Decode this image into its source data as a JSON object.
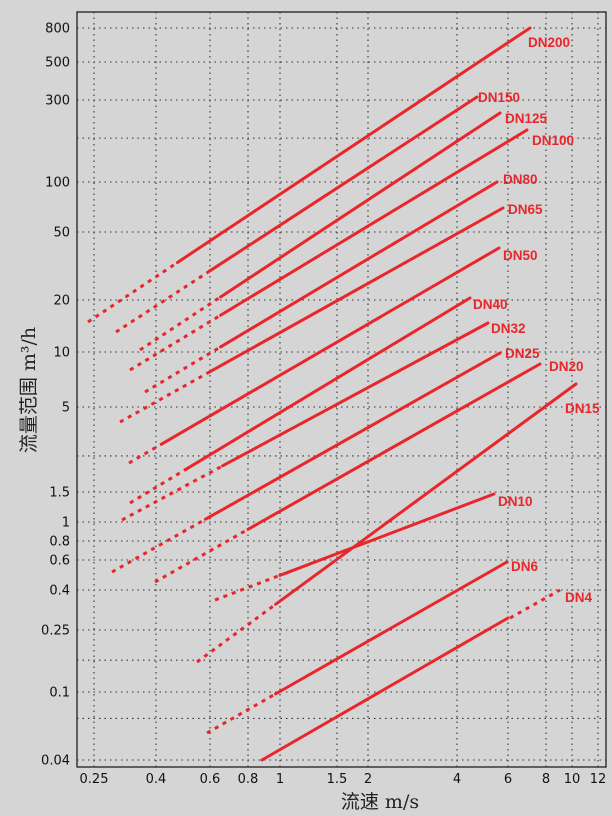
{
  "chart_data": {
    "type": "line",
    "xlabel": "流速 m/s",
    "ylabel": "流量范围 m³/h",
    "xscale": "log",
    "yscale": "log",
    "xlim": [
      0.23,
      12.5
    ],
    "ylim": [
      0.04,
      1000
    ],
    "grid": true,
    "x_ticks": [
      {
        "v": 0.25,
        "label": "0.25"
      },
      {
        "v": 0.4,
        "label": "0.4"
      },
      {
        "v": 0.6,
        "label": "0.6"
      },
      {
        "v": 0.8,
        "label": "0.8"
      },
      {
        "v": 1,
        "label": "1"
      },
      {
        "v": 1.5,
        "label": "1.5"
      },
      {
        "v": 2,
        "label": "2"
      },
      {
        "v": 4,
        "label": "4"
      },
      {
        "v": 6,
        "label": "6"
      },
      {
        "v": 8,
        "label": "8"
      },
      {
        "v": 10,
        "label": "10"
      },
      {
        "v": 12,
        "label": "12"
      }
    ],
    "y_ticks": [
      {
        "v": 0.04,
        "label": "0.04"
      },
      {
        "v": 0.1,
        "label": "0.1"
      },
      {
        "v": 0.25,
        "label": "0.25"
      },
      {
        "v": 0.4,
        "label": "0.4"
      },
      {
        "v": 0.6,
        "label": "0.6"
      },
      {
        "v": 0.8,
        "label": "0.8"
      },
      {
        "v": 1,
        "label": "1"
      },
      {
        "v": 1.5,
        "label": "1.5"
      },
      {
        "v": 5,
        "label": "5"
      },
      {
        "v": 10,
        "label": "10"
      },
      {
        "v": 20,
        "label": "20"
      },
      {
        "v": 50,
        "label": "50"
      },
      {
        "v": 100,
        "label": "100"
      },
      {
        "v": 300,
        "label": "300"
      },
      {
        "v": 500,
        "label": "500"
      },
      {
        "v": 800,
        "label": "800"
      }
    ],
    "x_grid": [
      0.25,
      0.4,
      0.6,
      0.8,
      1,
      1.5,
      2,
      4,
      6,
      8,
      10,
      12
    ],
    "y_grid": [
      0.04,
      0.07,
      0.1,
      0.16,
      0.25,
      0.4,
      0.6,
      0.8,
      1,
      1.5,
      2.5,
      5,
      10,
      20,
      50,
      100,
      180,
      300,
      500,
      800
    ],
    "series": [
      {
        "name": "DN200",
        "dashed": [
          0.24,
          0.47
        ],
        "solid": [
          0.48,
          7
        ]
      },
      {
        "name": "DN150",
        "dashed": [
          0.28,
          0.6
        ],
        "solid": [
          0.6,
          5.6
        ]
      },
      {
        "name": "DN125",
        "dashed": [
          0.35,
          0.65
        ],
        "solid": [
          0.66,
          5.8
        ]
      },
      {
        "name": "DN100",
        "dashed": [
          0.32,
          0.65
        ],
        "solid": [
          0.66,
          6.2
        ]
      },
      {
        "name": "DN80",
        "dashed": [
          0.35,
          0.65
        ],
        "solid": [
          0.66,
          5.5
        ]
      },
      {
        "name": "DN65",
        "dashed": [
          0.3,
          0.6
        ],
        "solid": [
          0.61,
          5.4
        ]
      },
      {
        "name": "DN50",
        "dashed": [
          0.32,
          0.42
        ],
        "solid": [
          0.43,
          5.5
        ]
      },
      {
        "name": "DN40",
        "dashed": [
          0.32,
          0.5
        ],
        "solid": [
          0.51,
          5
        ]
      },
      {
        "name": "DN32",
        "dashed": [
          0.32,
          0.66
        ],
        "solid": [
          0.67,
          5.2
        ]
      },
      {
        "name": "DN25",
        "dashed": [
          0.3,
          0.58
        ],
        "solid": [
          0.59,
          5.7
        ]
      },
      {
        "name": "DN20",
        "dashed": [
          0.38,
          0.8
        ],
        "solid": [
          0.81,
          6.4
        ]
      },
      {
        "name": "DN15",
        "dashed": [
          0.58,
          0.97
        ],
        "solid": [
          0.98,
          9.8
        ]
      },
      {
        "name": "DN10",
        "dashed": [
          0.58,
          1
        ],
        "solid": [
          1,
          5
        ]
      },
      {
        "name": "DN6",
        "dashed": [
          0.6,
          0.97
        ],
        "solid": [
          0.98,
          6
        ]
      },
      {
        "name": "DN4",
        "dashed": [
          6,
          12
        ],
        "solid": [
          0.95,
          6
        ]
      }
    ]
  }
}
